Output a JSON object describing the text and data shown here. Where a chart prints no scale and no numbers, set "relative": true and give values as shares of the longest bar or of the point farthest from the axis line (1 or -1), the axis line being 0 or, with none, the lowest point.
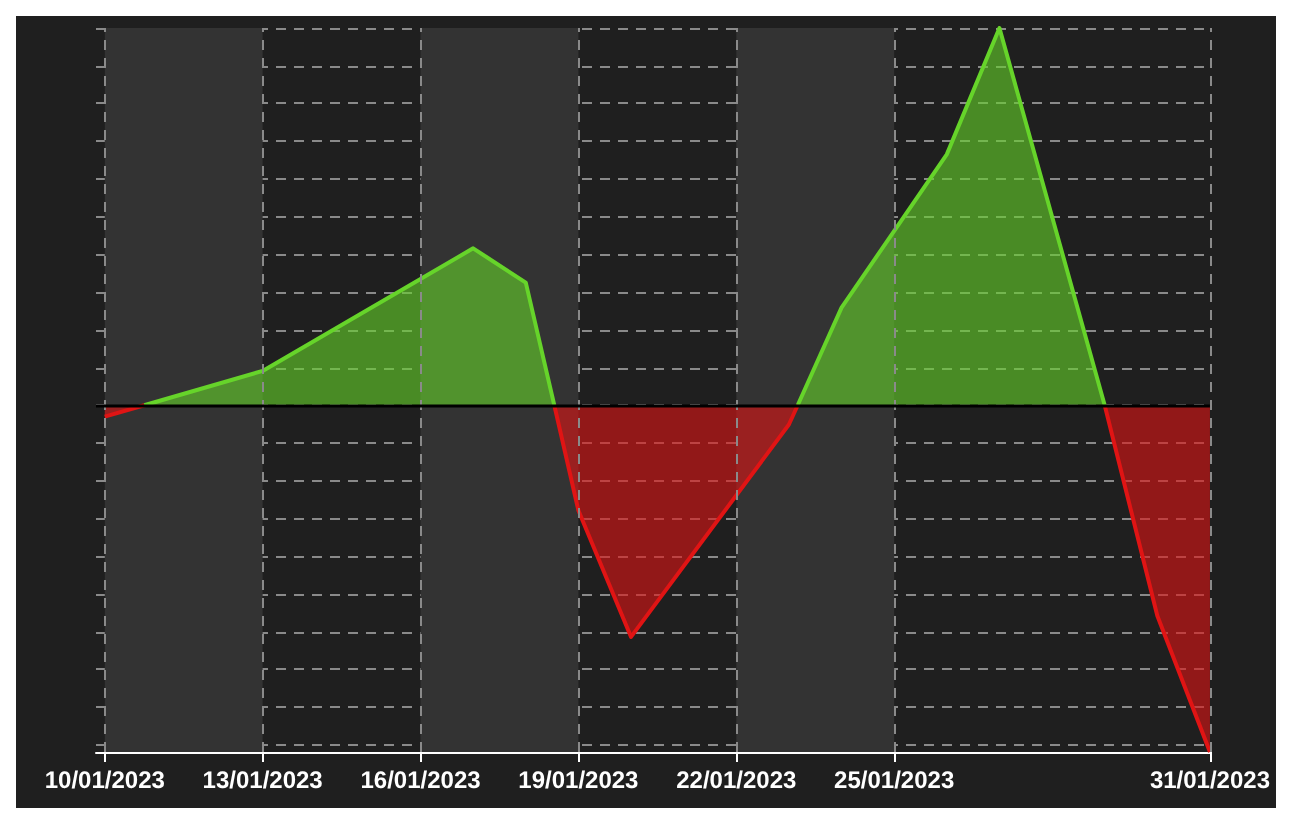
{
  "chart_data": {
    "type": "area",
    "relative": true,
    "series": [
      {
        "color": "#66d42a",
        "x": [
          "2023-01-10T18:00",
          "2023-01-13",
          "2023-01-17",
          "2023-01-18",
          "2023-01-18T13:00",
          "2023-01-21",
          "2023-01-23T04:00",
          "2023-01-24",
          "2023-01-26",
          "2023-01-27",
          "2023-01-29"
        ],
        "values": [
          0,
          0.091,
          0.416,
          0.325,
          0,
          null,
          0,
          0.259,
          0.665,
          1,
          0
        ]
      },
      {
        "color": "#e01414",
        "x": [
          "2023-01-10",
          "2023-01-10T18:00",
          "2023-01-15",
          "2023-01-18T13:00",
          "2023-01-19",
          "2023-01-20",
          "2023-01-23",
          "2023-01-23T04:00",
          "2023-01-26",
          "2023-01-29",
          "2023-01-30",
          "2023-01-31"
        ],
        "values": [
          -0.03,
          0,
          null,
          0,
          -0.279,
          -0.614,
          -0.051,
          0,
          null,
          0,
          -0.558,
          -0.919
        ]
      }
    ],
    "xlim": [
      "2023-01-09T20:00",
      "2023-01-31"
    ],
    "xticks": [
      {
        "value": "2023-01-10",
        "label": "10/01/2023"
      },
      {
        "value": "2023-01-13",
        "label": "13/01/2023"
      },
      {
        "value": "2023-01-16",
        "label": "16/01/2023"
      },
      {
        "value": "2023-01-19",
        "label": "19/01/2023"
      },
      {
        "value": "2023-01-22",
        "label": "22/01/2023"
      },
      {
        "value": "2023-01-25",
        "label": "25/01/2023"
      },
      {
        "value": "2023-01-31",
        "label": "31/01/2023"
      }
    ],
    "bands": [
      {
        "axis": "x",
        "from": "2023-01-10",
        "to": "2023-01-13",
        "color": "#333333"
      },
      {
        "axis": "x",
        "from": "2023-01-16",
        "to": "2023-01-19",
        "color": "#333333"
      },
      {
        "axis": "x",
        "from": "2023-01-22",
        "to": "2023-01-25",
        "color": "#333333"
      }
    ],
    "ref_lines": [
      {
        "axis": "y",
        "value": 0,
        "color": "#000000",
        "line_style": "solid"
      }
    ],
    "grid": true
  }
}
